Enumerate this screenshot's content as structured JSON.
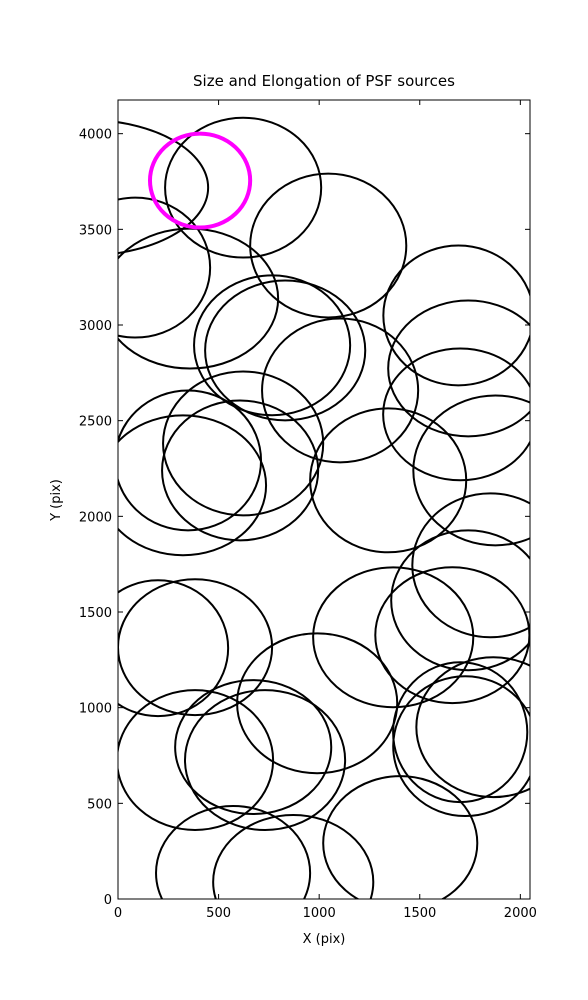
{
  "chart_data": {
    "type": "ellipse",
    "title": "Size and Elongation of PSF sources",
    "x_label": "X (pix)",
    "y_label": "Y (pix)",
    "xlim": [
      0,
      2048
    ],
    "ylim": [
      0,
      4176
    ],
    "xticks": [
      0,
      500,
      1000,
      1500,
      2000
    ],
    "yticks": [
      0,
      500,
      1000,
      1500,
      2000,
      2500,
      3000,
      3500,
      4000
    ],
    "series": [
      {
        "color": "#000000",
        "linewidth": 2,
        "x": [
          -164,
          622,
          1045,
          85,
          358,
          766,
          831,
          1104,
          1692,
          1741,
          1701,
          1876,
          1851,
          1741,
          1343,
          622,
          607,
          348,
          323,
          199,
          383,
          990,
          1368,
          1662,
          1701,
          1866,
          1726,
          383,
          672,
          731,
          1403,
          572,
          871
        ],
        "y": [
          3718,
          3718,
          3415,
          3300,
          3138,
          2894,
          2867,
          2658,
          3050,
          2773,
          2533,
          2240,
          1744,
          1561,
          2188,
          2381,
          2240,
          2292,
          2162,
          1311,
          1316,
          1023,
          1368,
          1379,
          872,
          898,
          799,
          726,
          794,
          726,
          292,
          136,
          89
        ],
        "widths": [
          1224,
          776,
          776,
          746,
          876,
          776,
          796,
          776,
          746,
          796,
          766,
          816,
          776,
          766,
          776,
          796,
          776,
          726,
          826,
          697,
          766,
          796,
          796,
          766,
          667,
          766,
          716,
          776,
          776,
          796,
          766,
          766,
          796
        ],
        "heights": [
          710,
          731,
          752,
          731,
          731,
          731,
          731,
          752,
          731,
          710,
          689,
          783,
          752,
          731,
          752,
          752,
          731,
          731,
          731,
          710,
          710,
          731,
          731,
          710,
          731,
          731,
          731,
          731,
          700,
          731,
          700,
          700,
          700
        ]
      },
      {
        "color": "#ff00ff",
        "linewidth": 4,
        "x": [
          408
        ],
        "y": [
          3755
        ],
        "widths": [
          498
        ],
        "heights": [
          491
        ]
      }
    ]
  }
}
